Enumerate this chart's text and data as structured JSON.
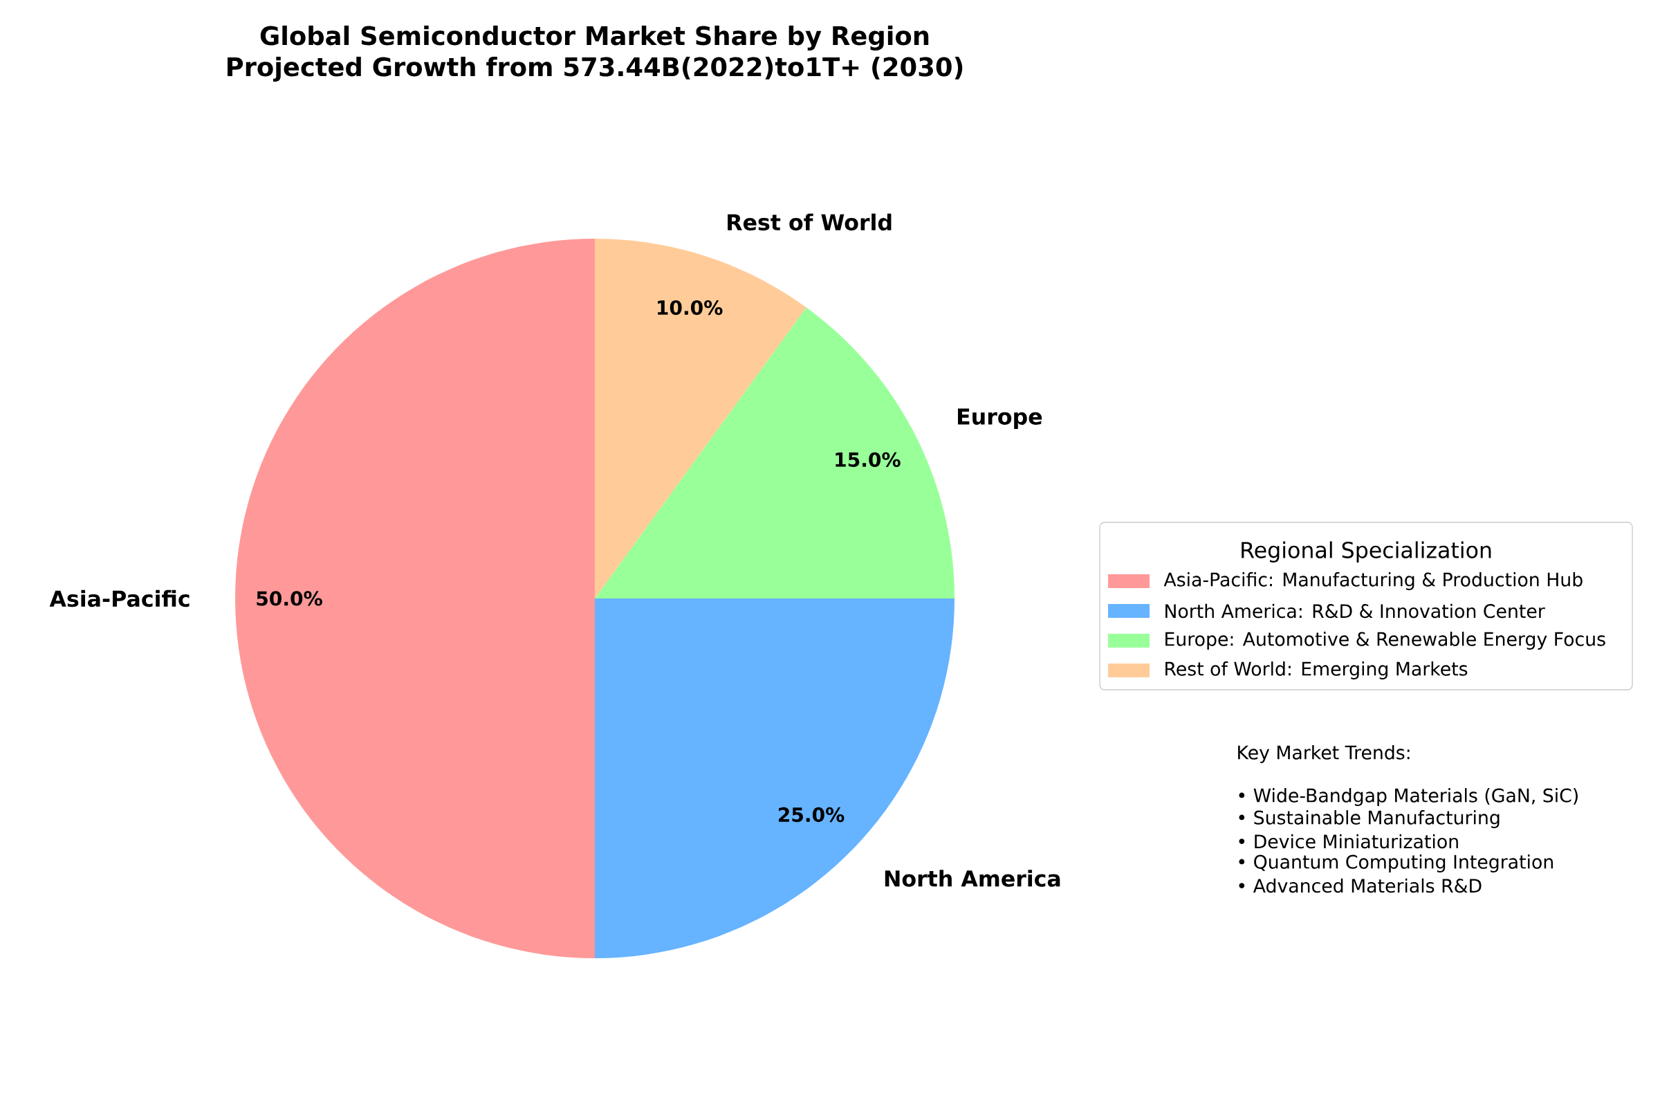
{
  "chart_data": {
    "type": "pie",
    "title": "Global Semiconductor Market Share by Region",
    "subtitle": "Projected Growth from 573.44B(2022)to1T+ (2030)",
    "categories": [
      "Asia-Pacific",
      "North America",
      "Europe",
      "Rest of World"
    ],
    "values": [
      50,
      25,
      15,
      10
    ],
    "colors": [
      "#ff9999",
      "#66b3ff",
      "#99ff99",
      "#ffcc99"
    ],
    "value_labels": [
      "50.0%",
      "25.0%",
      "15.0%",
      "10.0%"
    ],
    "legend_title": "Regional Specialization",
    "annotations": [
      "Asia-Pacific: Manufacturing & Production Hub",
      "North America: R&D & Innovation Center",
      "Europe: Automotive & Renewable Energy Focus",
      "Rest of World: Emerging Markets",
      "Key Market Trends:",
      "• Wide-Bandgap Materials (GaN, SiC)",
      "• Sustainable Manufacturing",
      "• Device Miniaturization",
      "• Quantum Computing Integration",
      "• Advanced Materials R&D"
    ]
  }
}
